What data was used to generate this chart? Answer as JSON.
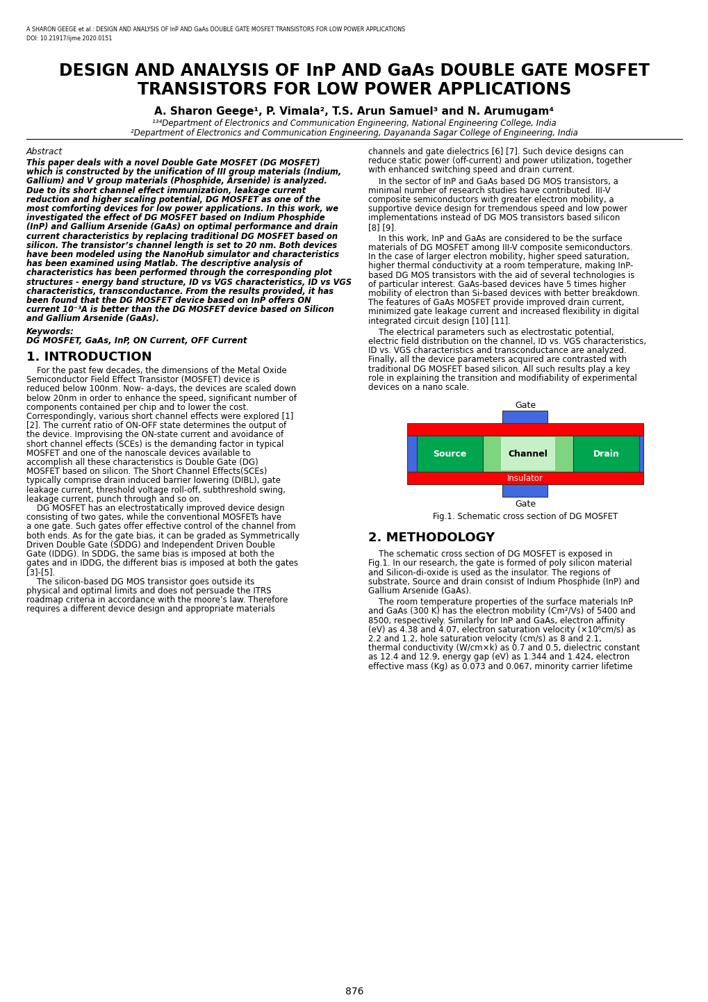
{
  "header_line1": "A SHARON GEEGE et al.: DESIGN AND ANALYSIS OF InP AND GaAs DOUBLE GATE MOSFET TRANSISTORS FOR LOW POWER APPLICATIONS",
  "header_line2": "DOI: 10.21917/ijme.2020.0151",
  "title_line1": "DESIGN AND ANALYSIS OF InP AND GaAs DOUBLE GATE MOSFET",
  "title_line2": "TRANSISTORS FOR LOW POWER APPLICATIONS",
  "authors": "A. Sharon Geege¹, P. Vimala², T.S. Arun Samuel³ and N. Arumugam⁴",
  "affil1": "¹³⁴Department of Electronics and Communication Engineering, National Engineering College, India",
  "affil2": "²Department of Electronics and Communication Engineering, Dayananda Sagar College of Engineering, India",
  "abstract_title": "Abstract",
  "keywords_title": "Keywords:",
  "keywords_text": "DG MOSFET, GaAs, InP, ON Current, OFF Current",
  "section1_title": "1. INTRODUCTION",
  "section2_title": "2. METHODOLOGY",
  "fig1_caption": "Fig.1. Schematic cross section of DG MOSFET",
  "page_number": "876",
  "bg_color": "#ffffff",
  "text_color": "#000000"
}
